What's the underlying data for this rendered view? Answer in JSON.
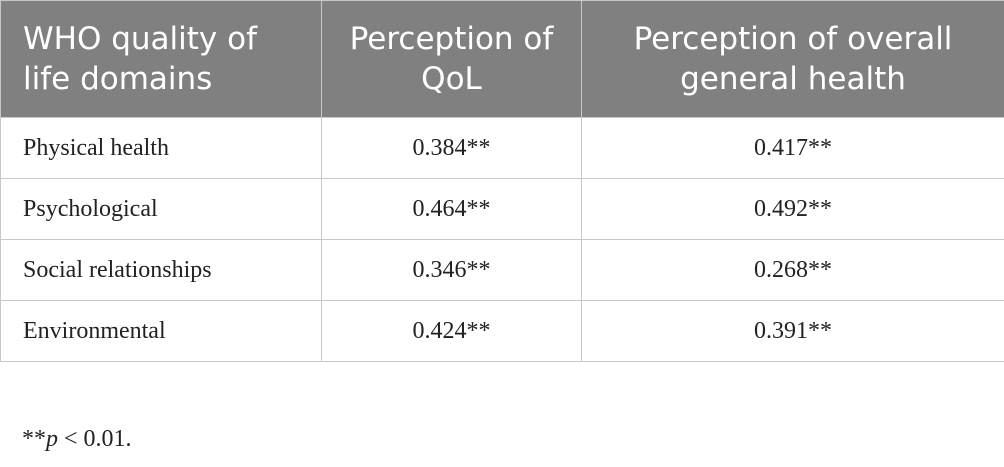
{
  "table": {
    "header": [
      "WHO quality of life domains",
      "Perception of QoL",
      "Perception of overall general health"
    ],
    "rows": [
      [
        "Physical health",
        "0.384**",
        "0.417**"
      ],
      [
        "Psychological",
        "0.464**",
        "0.492**"
      ],
      [
        "Social relationships",
        "0.346**",
        "0.268**"
      ],
      [
        "Environmental",
        "0.424**",
        "0.391**"
      ]
    ]
  },
  "footnote": {
    "marker": "**",
    "symbol": "p",
    "rest": " < 0.01."
  }
}
